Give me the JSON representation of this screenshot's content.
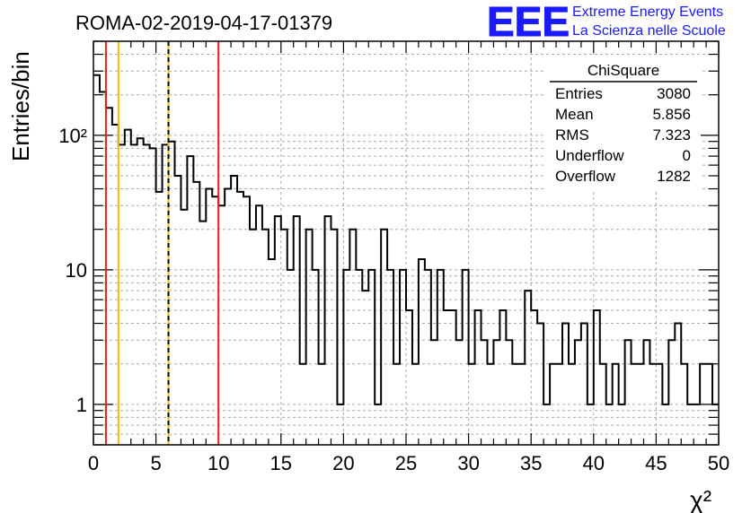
{
  "header": {
    "run_title": "ROMA-02-2019-04-17-01379",
    "logo_text": "EEE",
    "logo_line1": "Extreme Energy Events",
    "logo_line2": "La Scienza nelle Scuole",
    "logo_color": "#1a1aff"
  },
  "stats_box": {
    "title": "ChiSquare",
    "rows": [
      {
        "label": "Entries",
        "value": "3080"
      },
      {
        "label": "Mean",
        "value": "5.856"
      },
      {
        "label": "RMS",
        "value": "7.323"
      },
      {
        "label": "Underflow",
        "value": "0"
      },
      {
        "label": "Overflow",
        "value": "1282"
      }
    ]
  },
  "chart_data": {
    "type": "histogram",
    "title": "ROMA-02-2019-04-17-01379",
    "xlabel": "χ²",
    "ylabel": "Entries/bin",
    "xlim": [
      0,
      50
    ],
    "ylim": [
      0.5,
      500
    ],
    "yscale": "log",
    "grid": true,
    "bin_width": 0.5,
    "bin_start": 0,
    "values": [
      280,
      210,
      160,
      120,
      85,
      110,
      85,
      95,
      85,
      80,
      38,
      85,
      90,
      50,
      28,
      70,
      45,
      23,
      40,
      35,
      30,
      40,
      50,
      38,
      35,
      20,
      30,
      20,
      12,
      25,
      20,
      10,
      25,
      2,
      20,
      10,
      2,
      25,
      20,
      1,
      10,
      20,
      10,
      7,
      10,
      1,
      20,
      10,
      2,
      10,
      5,
      2,
      12,
      10,
      3,
      10,
      5,
      5,
      3,
      10,
      2,
      5,
      3,
      2,
      3,
      5,
      3,
      2,
      2,
      7,
      5,
      4,
      1,
      2,
      2,
      4,
      2,
      3,
      4,
      1,
      5,
      2,
      1,
      2,
      1,
      3,
      2,
      2,
      3,
      2,
      2,
      1,
      3,
      4,
      2,
      1,
      1,
      2,
      2,
      1
    ],
    "x_ticks": [
      "0",
      "5",
      "10",
      "15",
      "20",
      "25",
      "30",
      "35",
      "40",
      "45",
      "50"
    ],
    "y_ticks": [
      {
        "value": 1,
        "label": "1"
      },
      {
        "value": 10,
        "label": "10"
      },
      {
        "value": 100,
        "label": "10²"
      }
    ],
    "vertical_lines": [
      {
        "x": 1,
        "color": "#e8201a",
        "style": "solid"
      },
      {
        "x": 2,
        "color": "#f5b800",
        "style": "solid"
      },
      {
        "x": 6,
        "color": "#f5b800",
        "style": "solid"
      },
      {
        "x": 6,
        "color": "#000000",
        "style": "dashed"
      },
      {
        "x": 10,
        "color": "#e8201a",
        "style": "solid"
      }
    ]
  }
}
